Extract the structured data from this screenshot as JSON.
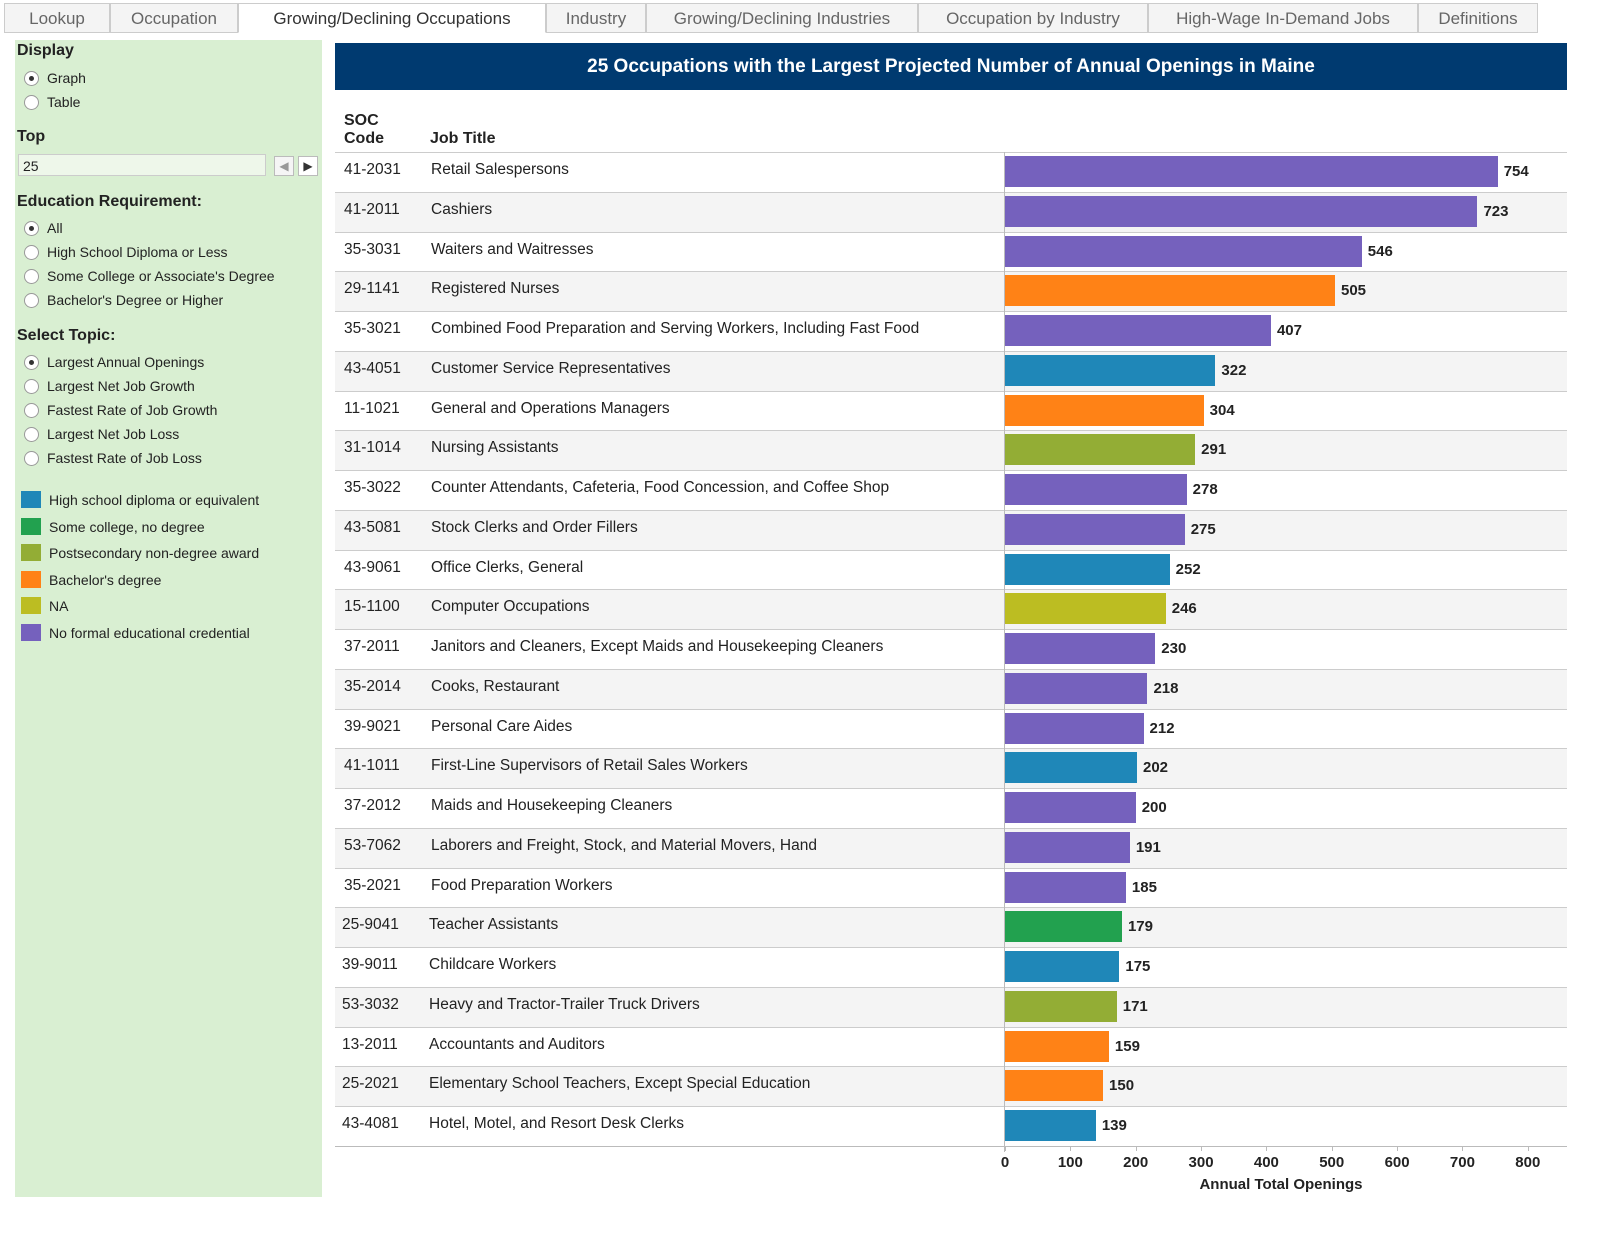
{
  "tabs": [
    "Lookup",
    "Occupation",
    "Growing/Declining Occupations",
    "Industry",
    "Growing/Declining Industries",
    "Occupation by Industry",
    "High-Wage In-Demand Jobs",
    "Definitions"
  ],
  "sidebar": {
    "display": {
      "label": "Display",
      "options": [
        "Graph",
        "Table"
      ]
    },
    "top": {
      "label": "Top",
      "value": "25"
    },
    "education": {
      "label": "Education Requirement:",
      "options": [
        "All",
        "High School Diploma or Less",
        "Some College or Associate's Degree",
        "Bachelor's Degree or Higher"
      ]
    },
    "topic": {
      "label": "Select Topic:",
      "options": [
        "Largest Annual Openings",
        "Largest Net Job Growth",
        "Fastest Rate of Job Growth",
        "Largest Net Job Loss",
        "Fastest Rate of Job Loss"
      ]
    },
    "legend": [
      {
        "name": "High school diploma or equivalent",
        "color": "#1f87b8"
      },
      {
        "name": "Some college, no degree",
        "color": "#22a14f"
      },
      {
        "name": "Postsecondary non-degree award",
        "color": "#93ad35"
      },
      {
        "name": "Bachelor's degree",
        "color": "#ff8216"
      },
      {
        "name": "NA",
        "color": "#bcbd22"
      },
      {
        "name": "No formal educational credential",
        "color": "#7561bd"
      }
    ]
  },
  "chart_data": {
    "type": "bar",
    "orientation": "horizontal",
    "title": "25 Occupations with the Largest Projected Number of Annual Openings in Maine",
    "column_headers": [
      "SOC Code",
      "Job Title"
    ],
    "soc_codes": [
      "41-2031",
      "41-2011",
      "35-3031",
      "29-1141",
      "35-3021",
      "43-4051",
      "11-1021",
      "31-1014",
      "35-3022",
      "43-5081",
      "43-9061",
      "15-1100",
      "37-2011",
      "35-2014",
      "39-9021",
      "41-1011",
      "37-2012",
      "53-7062",
      "35-2021",
      "25-9041",
      "39-9011",
      "53-3032",
      "13-2011",
      "25-2021",
      "43-4081"
    ],
    "categories": [
      "Retail Salespersons",
      "Cashiers",
      "Waiters and Waitresses",
      "Registered Nurses",
      "Combined Food Preparation and Serving Workers, Including Fast Food",
      "Customer Service Representatives",
      "General and Operations Managers",
      "Nursing Assistants",
      "Counter Attendants, Cafeteria, Food Concession, and Coffee Shop",
      "Stock Clerks and Order Fillers",
      "Office Clerks, General",
      "Computer Occupations",
      "Janitors and Cleaners, Except Maids and Housekeeping Cleaners",
      "Cooks, Restaurant",
      "Personal Care Aides",
      "First-Line Supervisors of Retail Sales Workers",
      "Maids and Housekeeping Cleaners",
      "Laborers and Freight, Stock, and Material Movers, Hand",
      "Food Preparation Workers",
      "Teacher Assistants",
      "Childcare Workers",
      "Heavy and Tractor-Trailer Truck Drivers",
      "Accountants and Auditors",
      "Elementary School Teachers, Except Special Education",
      "Hotel, Motel, and Resort Desk Clerks"
    ],
    "values": [
      754,
      723,
      546,
      505,
      407,
      322,
      304,
      291,
      278,
      275,
      252,
      246,
      230,
      218,
      212,
      202,
      200,
      191,
      185,
      179,
      175,
      171,
      159,
      150,
      139
    ],
    "colors": [
      "#7561bd",
      "#7561bd",
      "#7561bd",
      "#ff8216",
      "#7561bd",
      "#1f87b8",
      "#ff8216",
      "#93ad35",
      "#7561bd",
      "#7561bd",
      "#1f87b8",
      "#bcbd22",
      "#7561bd",
      "#7561bd",
      "#7561bd",
      "#1f87b8",
      "#7561bd",
      "#7561bd",
      "#7561bd",
      "#22a14f",
      "#1f87b8",
      "#93ad35",
      "#ff8216",
      "#ff8216",
      "#1f87b8"
    ],
    "xlim": [
      0,
      860
    ],
    "xticks": [
      0,
      100,
      200,
      300,
      400,
      500,
      600,
      700,
      800
    ],
    "xlabel": "Annual Total Openings"
  }
}
